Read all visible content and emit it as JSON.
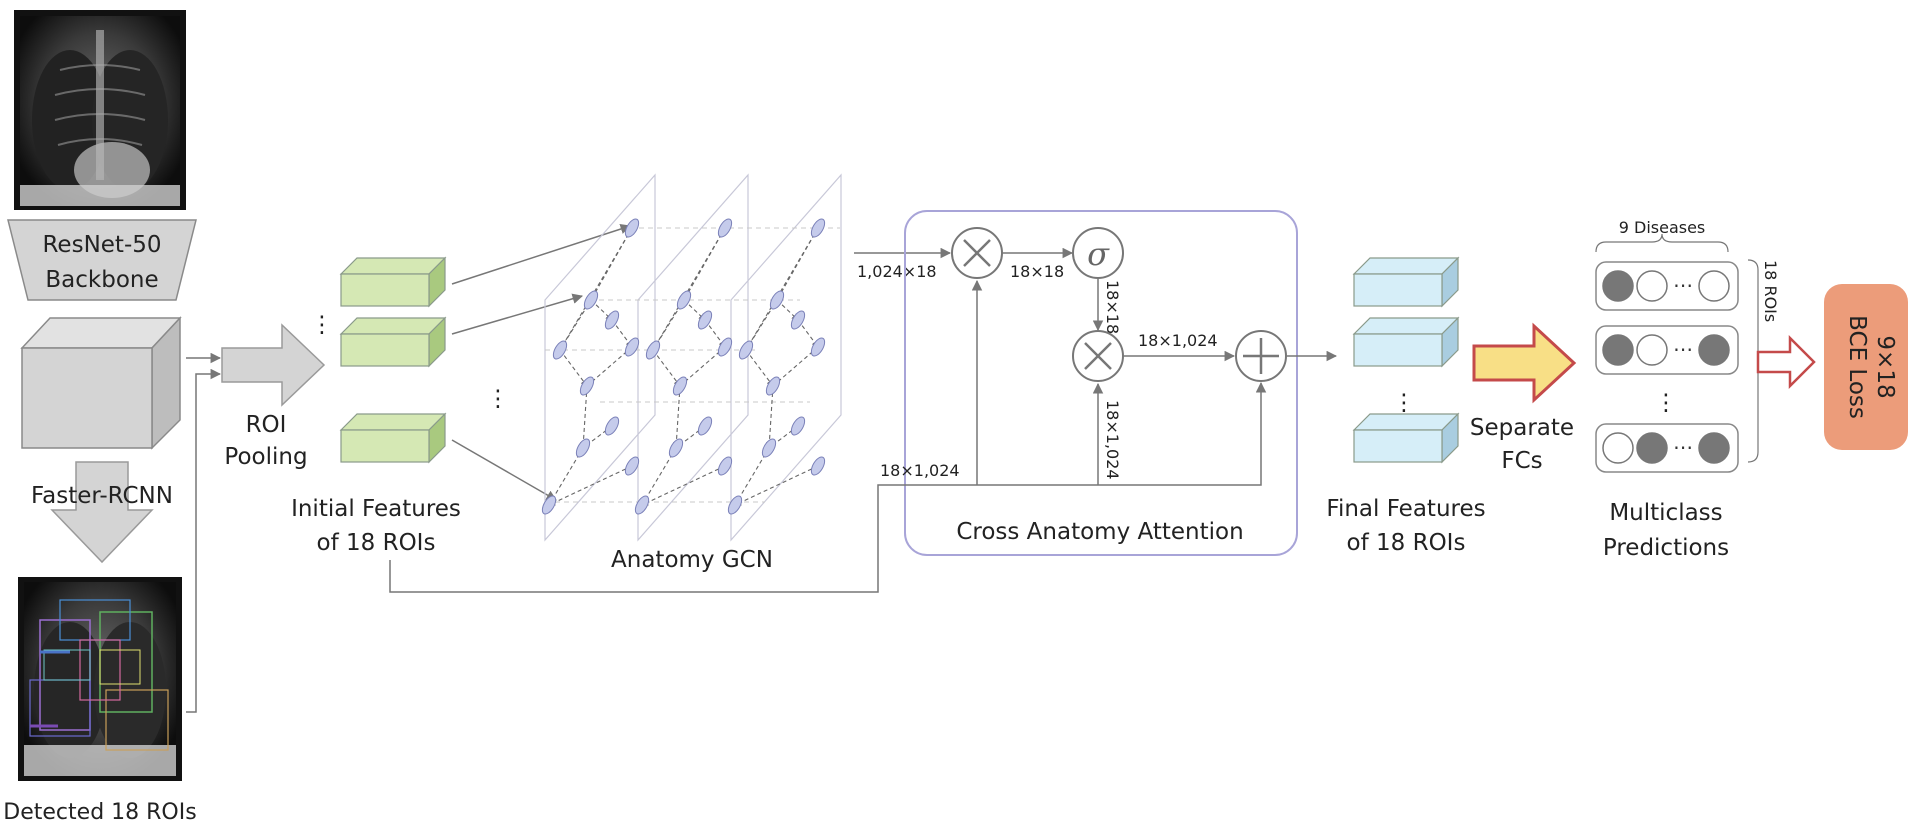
{
  "labels": {
    "backbone_line1": "ResNet-50",
    "backbone_line2": "Backbone",
    "faster_rcnn": "Faster-RCNN",
    "detected_rois": "Detected 18 ROIs",
    "roi_pooling_line1": "ROI",
    "roi_pooling_line2": "Pooling",
    "initial_features_line1": "Initial Features",
    "initial_features_line2": "of 18 ROIs",
    "anatomy_gcn": "Anatomy GCN",
    "cross_anatomy_attention": "Cross Anatomy Attention",
    "final_features_line1": "Final Features",
    "final_features_line2": "of 18 ROIs",
    "separate_fcs_line1": "Separate",
    "separate_fcs_line2": "FCs",
    "multiclass_line1": "Multiclass",
    "multiclass_line2": "Predictions",
    "nine_diseases": "9 Diseases",
    "eighteen_rois": "18 ROIs",
    "loss_line1": "9×18",
    "loss_line2": "BCE Loss",
    "sigma": "σ",
    "ellipsis": "⋯",
    "vdots": "⋮"
  },
  "dims": {
    "gcn_out": "1,024×18",
    "mult1_out": "18×18",
    "sigma_out": "18×18",
    "mult2_out": "18×1,024",
    "skip": "18×1,024",
    "to_mult2": "18×1,024"
  },
  "colors": {
    "green_face": "#d5e8b4",
    "green_side": "#a9c97f",
    "blue_face": "#d6eef8",
    "blue_side": "#a9cde0",
    "gray_block": "#d4d4d4",
    "attention_border": "#a8a4d8",
    "node_fill": "#c5cbeb",
    "fc_arrow_fill": "#f8df86",
    "fc_arrow_stroke": "#c44a4a",
    "loss_fill": "#ec9c7a"
  }
}
